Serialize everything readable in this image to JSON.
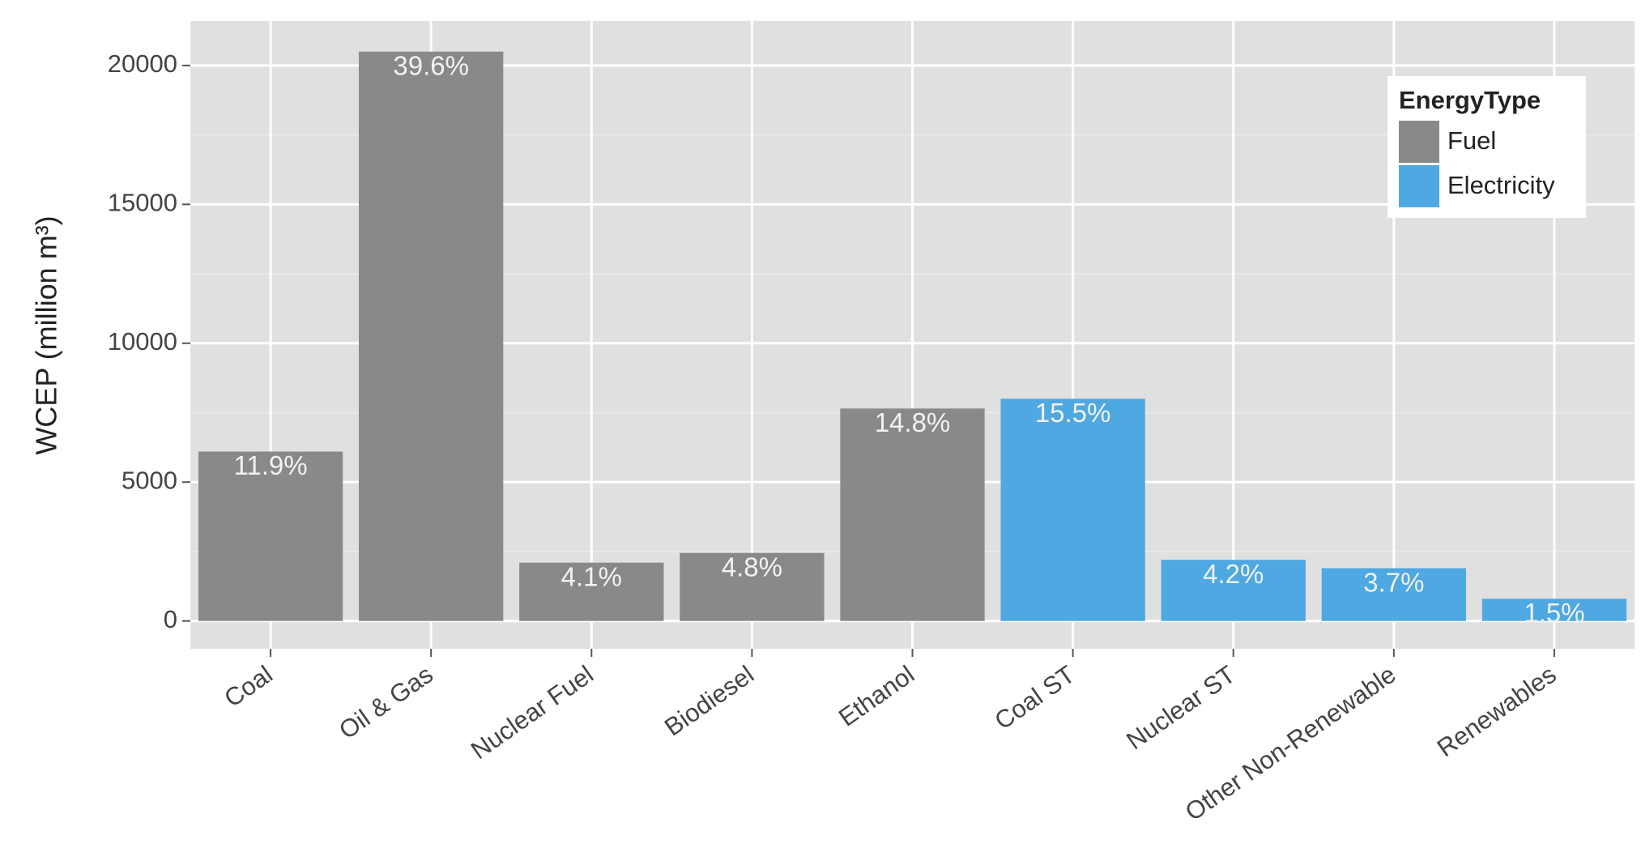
{
  "chart_data": {
    "type": "bar",
    "y_label": "WCEP (million m³)",
    "categories": [
      "Coal",
      "Oil & Gas",
      "Nuclear Fuel",
      "Biodiesel",
      "Ethanol",
      "Coal ST",
      "Nuclear ST",
      "Other Non-Renewable",
      "Renewables"
    ],
    "series": [
      {
        "name": "Fuel",
        "color": "#898989",
        "values": [
          6100,
          20500,
          2100,
          2450,
          7650,
          null,
          null,
          null,
          null
        ],
        "share_labels": [
          "11.9%",
          "39.6%",
          "4.1%",
          "4.8%",
          "14.8%",
          null,
          null,
          null,
          null
        ]
      },
      {
        "name": "Electricity",
        "color": "#4ea8e2",
        "values": [
          null,
          null,
          null,
          null,
          null,
          8000,
          2200,
          1900,
          800
        ],
        "share_labels": [
          null,
          null,
          null,
          null,
          null,
          "15.5%",
          "4.2%",
          "3.7%",
          "1.5%"
        ]
      }
    ],
    "legend_title": "EnergyType",
    "legend_position": "top-right",
    "ylim": [
      -1000,
      21600
    ],
    "yticks": [
      0,
      5000,
      10000,
      15000,
      20000
    ],
    "minor_yticks": [
      2500,
      7500,
      12500,
      17500
    ],
    "grid": true
  }
}
